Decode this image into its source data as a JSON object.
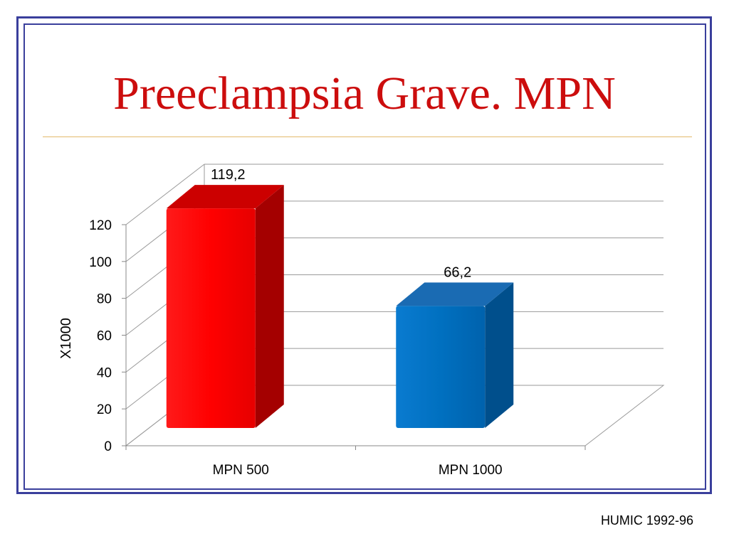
{
  "slide": {
    "title": "Preeclampsia Grave. MPN",
    "source": "HUMIC 1992-96"
  },
  "colors": {
    "frame": "#3a3f9c",
    "title": "#cc0d0d",
    "series": [
      "#ff0000",
      "#0070c0"
    ]
  },
  "chart_data": {
    "type": "bar",
    "style": "3d-column",
    "categories": [
      "MPN 500",
      "MPN 1000"
    ],
    "values": [
      119.2,
      66.2
    ],
    "value_labels": [
      "119,2",
      "66,2"
    ],
    "ylabel": "X1000",
    "xlabel": "",
    "ylim": [
      0,
      120
    ],
    "yticks": [
      0,
      20,
      40,
      60,
      80,
      100,
      120
    ],
    "grid": true,
    "legend": "none"
  }
}
